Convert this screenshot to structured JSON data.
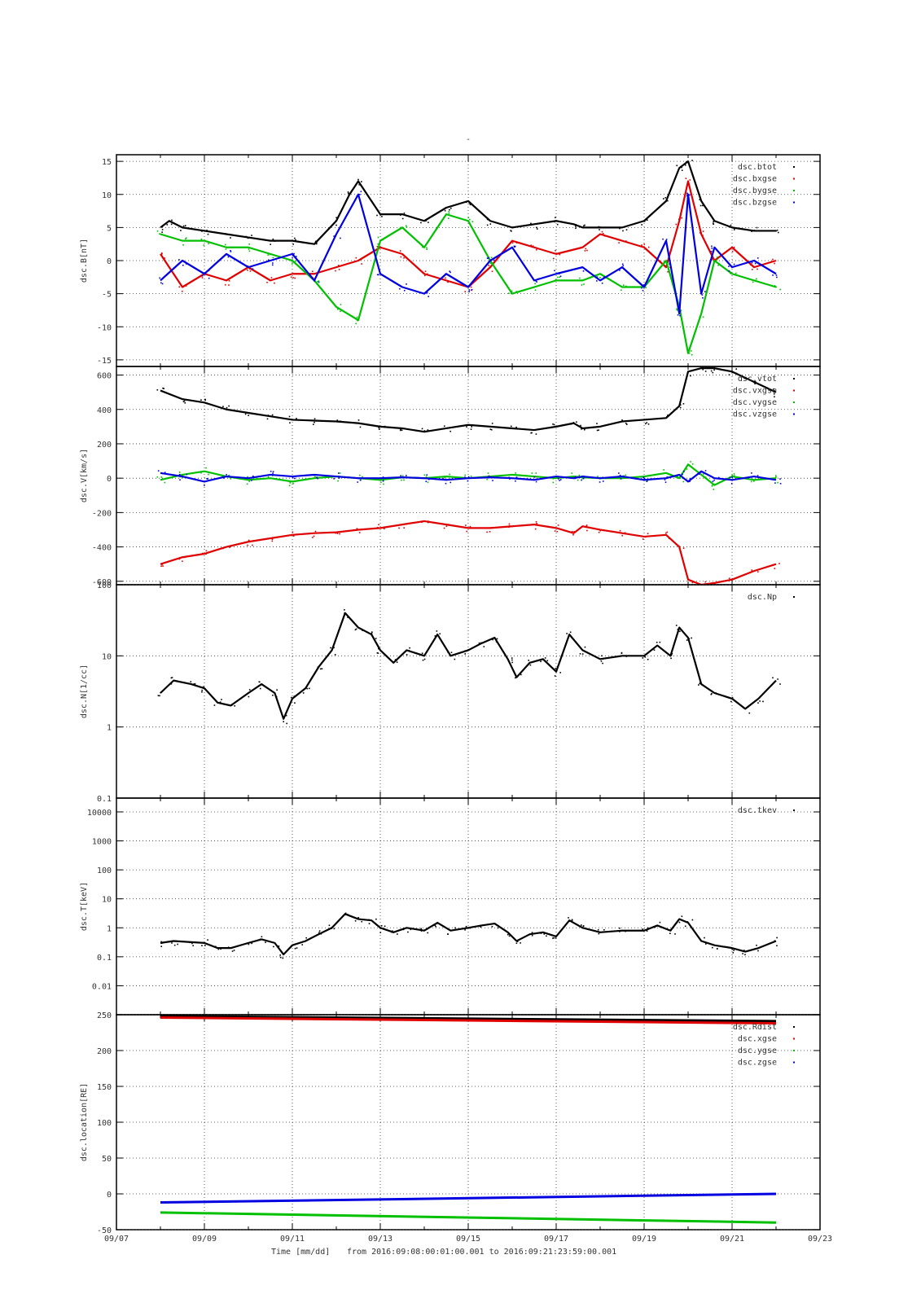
{
  "title": "-",
  "x_axis": {
    "label": "Time [mm/dd]",
    "range_text": "from 2016:09:08:00:01:00.001  to  2016:09:21:23:59:00.001",
    "tick_labels": [
      "09/07",
      "09/09",
      "09/11",
      "09/13",
      "09/15",
      "09/17",
      "09/19",
      "09/21",
      "09/23"
    ]
  },
  "colors": {
    "black": "#000000",
    "red": "#e00000",
    "green": "#00c000",
    "blue": "#0000e0"
  },
  "chart_data": [
    {
      "type": "scatter",
      "ylabel": "dsc.B[nT]",
      "ylim": [
        -16,
        16
      ],
      "yticks": [
        -15,
        -10,
        -5,
        0,
        5,
        10,
        15
      ],
      "ytick_labels": [
        "-15",
        "-10",
        "-5",
        "0",
        "5",
        "10",
        "15"
      ],
      "xlim_days": [
        7,
        23
      ],
      "grid": true,
      "legend": "top-right",
      "series": [
        {
          "name": "dsc.btot",
          "color": "#000000",
          "x": [
            8.0,
            8.2,
            8.5,
            9.0,
            9.5,
            10.0,
            10.5,
            11.0,
            11.5,
            12.0,
            12.3,
            12.5,
            13.0,
            13.5,
            14.0,
            14.5,
            15.0,
            15.5,
            16.0,
            16.5,
            17.0,
            17.4,
            17.6,
            18.0,
            18.5,
            19.0,
            19.5,
            19.8,
            20.0,
            20.3,
            20.6,
            21.0,
            21.5,
            22.0
          ],
          "y": [
            5,
            6,
            5,
            4.5,
            4,
            3.5,
            3,
            3,
            2.5,
            6,
            10,
            12,
            7,
            7,
            6,
            8,
            9,
            6,
            5,
            5.5,
            6,
            5.5,
            5,
            5,
            5,
            6,
            9,
            14,
            15,
            9,
            6,
            5,
            4.5,
            4.5
          ]
        },
        {
          "name": "dsc.bxgse",
          "color": "#e00000",
          "x": [
            8.0,
            8.5,
            9.0,
            9.5,
            10.0,
            10.5,
            11.0,
            11.5,
            12.0,
            12.5,
            13.0,
            13.5,
            14.0,
            14.5,
            15.0,
            15.5,
            16.0,
            16.5,
            17.0,
            17.6,
            18.0,
            18.5,
            19.0,
            19.5,
            19.8,
            20.0,
            20.3,
            20.6,
            21.0,
            21.5,
            22.0
          ],
          "y": [
            1,
            -4,
            -2,
            -3,
            -1,
            -3,
            -2,
            -2,
            -1,
            0,
            2,
            1,
            -2,
            -3,
            -4,
            -1,
            3,
            2,
            1,
            2,
            4,
            3,
            2,
            -1,
            6,
            12,
            4,
            0,
            2,
            -1,
            0
          ]
        },
        {
          "name": "dsc.bygse",
          "color": "#00c000",
          "x": [
            8.0,
            8.5,
            9.0,
            9.5,
            10.0,
            10.5,
            11.0,
            11.5,
            12.0,
            12.5,
            13.0,
            13.5,
            14.0,
            14.5,
            15.0,
            15.5,
            16.0,
            16.5,
            17.0,
            17.6,
            18.0,
            18.5,
            19.0,
            19.5,
            19.8,
            20.0,
            20.3,
            20.6,
            21.0,
            21.5,
            22.0
          ],
          "y": [
            4,
            3,
            3,
            2,
            2,
            1,
            0,
            -3,
            -7,
            -9,
            3,
            5,
            2,
            7,
            6,
            0,
            -5,
            -4,
            -3,
            -3,
            -2,
            -4,
            -4,
            0,
            -7,
            -14,
            -8,
            0,
            -2,
            -3,
            -4
          ]
        },
        {
          "name": "dsc.bzgse",
          "color": "#0000e0",
          "x": [
            8.0,
            8.5,
            9.0,
            9.5,
            10.0,
            10.5,
            11.0,
            11.5,
            12.0,
            12.5,
            13.0,
            13.5,
            14.0,
            14.5,
            15.0,
            15.5,
            16.0,
            16.5,
            17.0,
            17.6,
            18.0,
            18.5,
            19.0,
            19.5,
            19.8,
            20.0,
            20.3,
            20.6,
            21.0,
            21.5,
            22.0
          ],
          "y": [
            -3,
            0,
            -2,
            1,
            -1,
            0,
            1,
            -3,
            4,
            10,
            -2,
            -4,
            -5,
            -2,
            -4,
            0,
            2,
            -3,
            -2,
            -1,
            -3,
            -1,
            -4,
            3,
            -8,
            10,
            -5,
            2,
            -1,
            0,
            -2
          ]
        }
      ]
    },
    {
      "type": "scatter",
      "ylabel": "dsc.V[km/s]",
      "ylim": [
        -620,
        650
      ],
      "yticks": [
        -600,
        -400,
        -200,
        0,
        200,
        400,
        600
      ],
      "ytick_labels": [
        "-600",
        "-400",
        "-200",
        "0",
        "200",
        "400",
        "600"
      ],
      "xlim_days": [
        7,
        23
      ],
      "grid": true,
      "legend": "top-right",
      "series": [
        {
          "name": "dsc.vtot",
          "color": "#000000",
          "x": [
            8.0,
            8.5,
            9.0,
            9.5,
            10.0,
            10.5,
            11.0,
            11.5,
            12.0,
            12.5,
            13.0,
            13.5,
            14.0,
            14.5,
            15.0,
            15.5,
            16.0,
            16.5,
            17.0,
            17.4,
            17.6,
            18.0,
            18.5,
            19.0,
            19.5,
            19.8,
            20.0,
            20.3,
            20.6,
            21.0,
            21.5,
            22.0
          ],
          "y": [
            510,
            460,
            440,
            400,
            380,
            360,
            340,
            335,
            330,
            320,
            300,
            290,
            270,
            290,
            310,
            300,
            290,
            280,
            300,
            320,
            290,
            300,
            330,
            340,
            350,
            420,
            620,
            640,
            640,
            620,
            560,
            500
          ]
        },
        {
          "name": "dsc.vxgse",
          "color": "#e00000",
          "x": [
            8.0,
            8.5,
            9.0,
            9.5,
            10.0,
            10.5,
            11.0,
            11.5,
            12.0,
            12.5,
            13.0,
            13.5,
            14.0,
            14.5,
            15.0,
            15.5,
            16.0,
            16.5,
            17.0,
            17.4,
            17.6,
            18.0,
            18.5,
            19.0,
            19.5,
            19.8,
            20.0,
            20.3,
            20.6,
            21.0,
            21.5,
            22.0
          ],
          "y": [
            -500,
            -460,
            -440,
            -400,
            -370,
            -350,
            -330,
            -320,
            -315,
            -300,
            -290,
            -270,
            -250,
            -270,
            -290,
            -290,
            -280,
            -270,
            -290,
            -320,
            -280,
            -300,
            -320,
            -340,
            -330,
            -400,
            -590,
            -620,
            -610,
            -590,
            -540,
            -500
          ]
        },
        {
          "name": "dsc.vygse",
          "color": "#00c000",
          "x": [
            8.0,
            8.5,
            9.0,
            9.5,
            10.0,
            10.5,
            11.0,
            11.5,
            12.0,
            12.5,
            13.0,
            13.5,
            14.0,
            14.5,
            15.0,
            15.5,
            16.0,
            16.5,
            17.0,
            17.4,
            17.6,
            18.0,
            18.5,
            19.0,
            19.5,
            19.8,
            20.0,
            20.3,
            20.6,
            21.0,
            21.5,
            22.0
          ],
          "y": [
            -10,
            20,
            40,
            10,
            -10,
            0,
            -20,
            0,
            10,
            0,
            -10,
            5,
            0,
            10,
            0,
            10,
            20,
            10,
            0,
            10,
            5,
            0,
            0,
            10,
            30,
            0,
            80,
            20,
            -40,
            10,
            -10,
            0
          ]
        },
        {
          "name": "dsc.vzgse",
          "color": "#0000e0",
          "x": [
            8.0,
            8.5,
            9.0,
            9.5,
            10.0,
            10.5,
            11.0,
            11.5,
            12.0,
            12.5,
            13.0,
            13.5,
            14.0,
            14.5,
            15.0,
            15.5,
            16.0,
            16.5,
            17.0,
            17.4,
            17.6,
            18.0,
            18.5,
            19.0,
            19.5,
            19.8,
            20.0,
            20.3,
            20.6,
            21.0,
            21.5,
            22.0
          ],
          "y": [
            30,
            10,
            -20,
            10,
            0,
            20,
            10,
            20,
            10,
            0,
            0,
            5,
            0,
            -10,
            0,
            5,
            0,
            -10,
            10,
            0,
            10,
            0,
            10,
            -10,
            0,
            20,
            -20,
            40,
            0,
            -10,
            10,
            -10
          ]
        }
      ]
    },
    {
      "type": "scatter",
      "ylabel": "dsc.N[1/cc]",
      "yscale": "log",
      "ylim": [
        0.1,
        100
      ],
      "yticks": [
        0.1,
        1,
        10,
        100
      ],
      "ytick_labels": [
        "0.1",
        "1",
        "10",
        "100"
      ],
      "xlim_days": [
        7,
        23
      ],
      "grid": true,
      "legend": "top-right",
      "series": [
        {
          "name": "dsc.Np",
          "color": "#000000",
          "x": [
            8.0,
            8.3,
            8.7,
            9.0,
            9.3,
            9.6,
            10.0,
            10.3,
            10.6,
            10.8,
            11.0,
            11.3,
            11.6,
            11.9,
            12.2,
            12.5,
            12.8,
            13.0,
            13.3,
            13.6,
            14.0,
            14.3,
            14.6,
            15.0,
            15.3,
            15.6,
            15.9,
            16.1,
            16.4,
            16.7,
            17.0,
            17.3,
            17.6,
            18.0,
            18.5,
            19.0,
            19.3,
            19.6,
            19.8,
            20.0,
            20.3,
            20.6,
            21.0,
            21.3,
            21.6,
            22.0
          ],
          "y": [
            3,
            4.5,
            4,
            3.5,
            2.2,
            2,
            3,
            4,
            3,
            1.3,
            2.5,
            3.5,
            7,
            12,
            40,
            25,
            20,
            12,
            8,
            12,
            10,
            20,
            10,
            12,
            15,
            18,
            9,
            5,
            8,
            9,
            6,
            20,
            12,
            9,
            10,
            10,
            14,
            10,
            25,
            18,
            4,
            3,
            2.5,
            1.8,
            2.5,
            4.5
          ]
        }
      ]
    },
    {
      "type": "scatter",
      "ylabel": "dsc.T[keV]",
      "yscale": "log",
      "ylim": [
        0.001,
        30000
      ],
      "yticks": [
        0.01,
        0.1,
        1,
        10,
        100,
        1000,
        10000
      ],
      "ytick_labels": [
        "0.01",
        "0.1",
        "1",
        "10",
        "100",
        "1000",
        "10000"
      ],
      "xlim_days": [
        7,
        23
      ],
      "grid": true,
      "legend": "top-right",
      "series": [
        {
          "name": "dsc.tkev",
          "color": "#000000",
          "x": [
            8.0,
            8.3,
            8.7,
            9.0,
            9.3,
            9.6,
            10.0,
            10.3,
            10.6,
            10.8,
            11.0,
            11.3,
            11.6,
            11.9,
            12.2,
            12.5,
            12.8,
            13.0,
            13.3,
            13.6,
            14.0,
            14.3,
            14.6,
            15.0,
            15.3,
            15.6,
            15.9,
            16.1,
            16.4,
            16.7,
            17.0,
            17.3,
            17.6,
            18.0,
            18.5,
            19.0,
            19.3,
            19.6,
            19.8,
            20.0,
            20.3,
            20.6,
            21.0,
            21.3,
            21.6,
            22.0
          ],
          "y": [
            0.3,
            0.35,
            0.32,
            0.3,
            0.2,
            0.2,
            0.3,
            0.4,
            0.3,
            0.12,
            0.25,
            0.35,
            0.6,
            1.0,
            3.0,
            2.0,
            1.8,
            1.0,
            0.7,
            1.0,
            0.8,
            1.5,
            0.8,
            1.0,
            1.2,
            1.4,
            0.7,
            0.35,
            0.6,
            0.7,
            0.5,
            1.8,
            1.0,
            0.7,
            0.8,
            0.8,
            1.2,
            0.8,
            2.0,
            1.5,
            0.35,
            0.25,
            0.2,
            0.15,
            0.2,
            0.35
          ]
        }
      ]
    },
    {
      "type": "line",
      "ylabel": "dsc.location[RE]",
      "ylim": [
        -50,
        250
      ],
      "yticks": [
        -50,
        0,
        50,
        100,
        150,
        200,
        250
      ],
      "ytick_labels": [
        "-50",
        "0",
        "50",
        "100",
        "150",
        "200",
        "250"
      ],
      "xlim_days": [
        7,
        23
      ],
      "grid": true,
      "legend": "top-right",
      "series": [
        {
          "name": "dsc.Rdist",
          "color": "#000000",
          "x": [
            8.0,
            22.0
          ],
          "y": [
            248,
            241
          ]
        },
        {
          "name": "dsc.xgse",
          "color": "#e00000",
          "x": [
            8.0,
            22.0
          ],
          "y": [
            246,
            238
          ]
        },
        {
          "name": "dsc.ygse",
          "color": "#00c000",
          "x": [
            8.0,
            22.0
          ],
          "y": [
            -26,
            -40
          ]
        },
        {
          "name": "dsc.zgse",
          "color": "#0000e0",
          "x": [
            8.0,
            22.0
          ],
          "y": [
            -12,
            0
          ]
        }
      ]
    }
  ]
}
